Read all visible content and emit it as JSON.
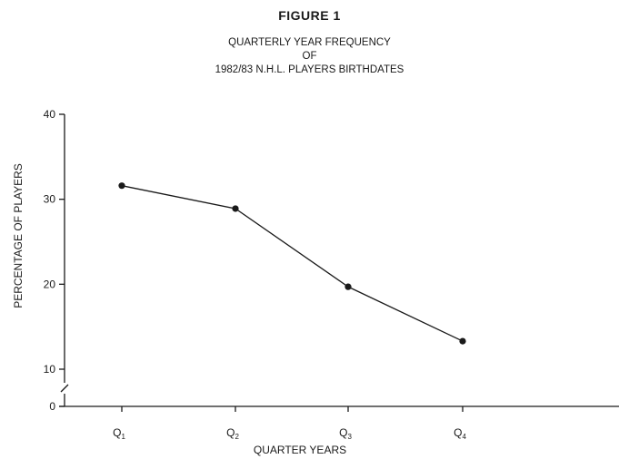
{
  "figure_label": "FIGURE 1",
  "title_lines": [
    "QUARTERLY YEAR FREQUENCY",
    "OF",
    "1982/83 N.H.L. PLAYERS BIRTHDATES"
  ],
  "chart_data": {
    "type": "line",
    "title": "QUARTERLY YEAR FREQUENCY OF 1982/83 N.H.L. PLAYERS BIRTHDATES",
    "xlabel": "QUARTER YEARS",
    "ylabel": "PERCENTAGE OF PLAYERS",
    "categories": [
      {
        "main": "Q",
        "sub": "1"
      },
      {
        "main": "Q",
        "sub": "2"
      },
      {
        "main": "Q",
        "sub": "3"
      },
      {
        "main": "Q",
        "sub": "4"
      }
    ],
    "values": [
      31.6,
      28.9,
      19.7,
      13.3
    ],
    "y_ticks": [
      "40",
      "30",
      "20",
      "10",
      "0"
    ],
    "y_tick_values": [
      40,
      30,
      20,
      10,
      0
    ],
    "ylim": [
      0,
      40
    ],
    "axis_break": true,
    "grid": false,
    "legend": "none",
    "line_color": "#1a1a1a"
  }
}
